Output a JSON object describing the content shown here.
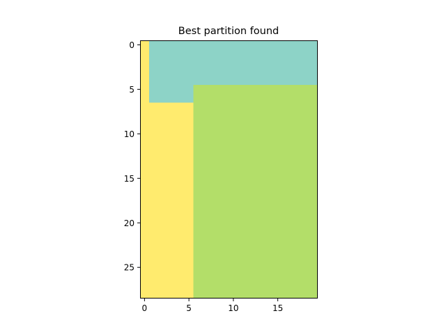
{
  "chart_data": {
    "type": "heatmap",
    "title": "Best partition found",
    "xlabel": "",
    "ylabel": "",
    "grid": false,
    "n_rows": 29,
    "n_cols": 20,
    "xlim": [
      -0.5,
      19.5
    ],
    "ylim": [
      28.5,
      -0.5
    ],
    "xticks": [
      0,
      5,
      10,
      15
    ],
    "yticks": [
      0,
      5,
      10,
      15,
      20,
      25
    ],
    "regions": [
      {
        "label": 0,
        "color": "#ffeb6e",
        "rows": [
          0,
          28
        ],
        "cols": [
          0,
          0
        ]
      },
      {
        "label": 0,
        "color": "#ffeb6e",
        "rows": [
          7,
          28
        ],
        "cols": [
          1,
          5
        ]
      },
      {
        "label": 1,
        "color": "#8dd3c7",
        "rows": [
          0,
          6
        ],
        "cols": [
          1,
          5
        ]
      },
      {
        "label": 1,
        "color": "#8dd3c7",
        "rows": [
          0,
          4
        ],
        "cols": [
          6,
          19
        ]
      },
      {
        "label": 2,
        "color": "#b3de69",
        "rows": [
          5,
          28
        ],
        "cols": [
          6,
          19
        ]
      }
    ]
  }
}
